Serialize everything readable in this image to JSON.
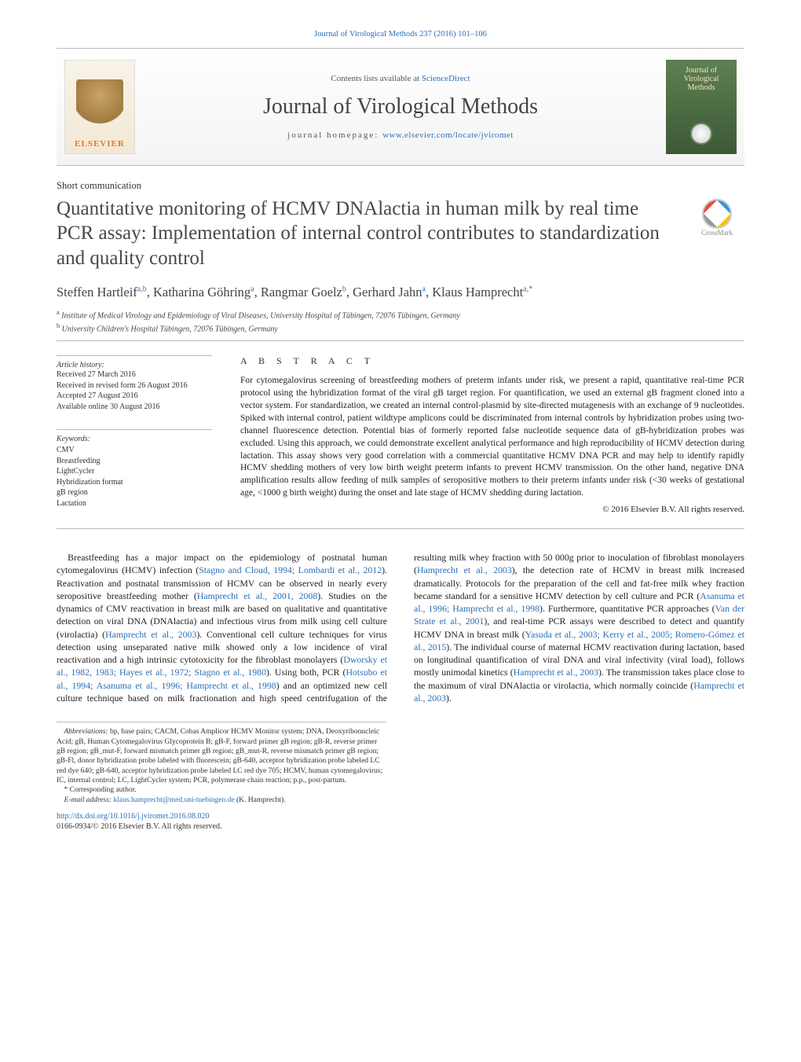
{
  "header": {
    "citation": "Journal of Virological Methods 237 (2016) 101–106",
    "contents_prefix": "Contents lists available at ",
    "contents_link": "ScienceDirect",
    "journal_name": "Journal of Virological Methods",
    "homepage_prefix": "journal homepage: ",
    "homepage_link": "www.elsevier.com/locate/jviromet",
    "elsevier_label": "ELSEVIER",
    "cover_title": "Journal of Virological Methods",
    "crossmark_label": "CrossMark"
  },
  "article": {
    "section_type": "Short communication",
    "title": "Quantitative monitoring of HCMV DNAlactia in human milk by real time PCR assay: Implementation of internal control contributes to standardization and quality control",
    "authors_html": "Steffen Hartleif<sup>a,b</sup>, Katharina Göhring<sup>a</sup>, Rangmar Goelz<sup>b</sup>, Gerhard Jahn<sup>a</sup>, Klaus Hamprecht<sup>a,*</sup>",
    "affiliations": [
      "a Institute of Medical Virology and Epidemiology of Viral Diseases, University Hospital of Tübingen, 72076 Tübingen, Germany",
      "b University Children's Hospital Tübingen, 72076 Tübingen, Germany"
    ]
  },
  "history": {
    "heading": "Article history:",
    "received": "Received 27 March 2016",
    "revised": "Received in revised form 26 August 2016",
    "accepted": "Accepted 27 August 2016",
    "online": "Available online 30 August 2016"
  },
  "keywords": {
    "heading": "Keywords:",
    "items": [
      "CMV",
      "Breastfeeding",
      "LightCycler",
      "Hybridization format",
      "gB region",
      "Lactation"
    ]
  },
  "abstract": {
    "heading": "A B S T R A C T",
    "text": "For cytomegalovirus screening of breastfeeding mothers of preterm infants under risk, we present a rapid, quantitative real-time PCR protocol using the hybridization format of the viral gB target region. For quantification, we used an external gB fragment cloned into a vector system. For standardization, we created an internal control-plasmid by site-directed mutagenesis with an exchange of 9 nucleotides. Spiked with internal control, patient wildtype amplicons could be discriminated from internal controls by hybridization probes using two-channel fluorescence detection. Potential bias of formerly reported false nucleotide sequence data of gB-hybridization probes was excluded. Using this approach, we could demonstrate excellent analytical performance and high reproducibility of HCMV detection during lactation. This assay shows very good correlation with a commercial quantitative HCMV DNA PCR and may help to identify rapidly HCMV shedding mothers of very low birth weight preterm infants to prevent HCMV transmission. On the other hand, negative DNA amplification results allow feeding of milk samples of seropositive mothers to their preterm infants under risk (<30 weeks of gestational age, <1000 g birth weight) during the onset and late stage of HCMV shedding during lactation.",
    "copyright": "© 2016 Elsevier B.V. All rights reserved."
  },
  "body": {
    "p1_pre": "Breastfeeding has a major impact on the epidemiology of postnatal human cytomegalovirus (HCMV) infection (",
    "p1_c1": "Stagno and Cloud, 1994; Lombardi et al., 2012",
    "p1_mid1": "). Reactivation and postnatal transmission of HCMV can be observed in nearly every seropositive breastfeeding mother (",
    "p1_c2": "Hamprecht et al., 2001, 2008",
    "p1_mid2": "). Studies on the dynamics of CMV reactivation in breast milk are based on qualitative and quantitative detection on viral DNA (DNAlactia) and infectious virus from milk using cell culture (virolactia) (",
    "p1_c3": "Hamprecht et al., 2003",
    "p1_mid3": "). Conventional cell culture techniques for virus detection using unseparated native milk showed only a low incidence ",
    "p2_pre": "of viral reactivation and a high intrinsic cytotoxicity for the fibroblast monolayers (",
    "p2_c1": "Dworsky et al., 1982, 1983; Hayes et al., 1972; Stagno et al., 1980",
    "p2_mid1": "). Using both, PCR (",
    "p2_c2": "Hotsubo et al., 1994; Asanuma et al., 1996; Hamprecht et al., 1998",
    "p2_mid2": ") and an optimized new cell culture technique based on milk fractionation and high speed centrifugation of the resulting milk whey fraction with 50 000g prior to inoculation of fibroblast monolayers (",
    "p2_c3": "Hamprecht et al., 2003",
    "p2_mid3": "), the detection rate of HCMV in breast milk increased dramatically. Protocols for the preparation of the cell and fat-free milk whey fraction became standard for a sensitive HCMV detection by cell culture and PCR (",
    "p2_c4": "Asanuma et al., 1996; Hamprecht et al., 1998",
    "p2_mid4": "). Furthermore, quantitative PCR approaches (",
    "p2_c5": "Van der Strate et al., 2001",
    "p2_mid5": "), and real-time PCR assays were described to detect and quantify HCMV DNA in breast milk (",
    "p2_c6": "Yasuda et al., 2003; Kerry et al., 2005; Romero-Gómez et al., 2015",
    "p2_mid6": "). The individual course of maternal HCMV reactivation during lactation, based on longitudinal quantification of viral DNA and viral infectivity (viral load), follows mostly unimodal kinetics (",
    "p2_c7": "Hamprecht et al., 2003",
    "p2_mid7": "). The transmission takes place close to the maximum of viral DNAlactia or virolactia, which normally coincide (",
    "p2_c8": "Hamprecht et al., 2003",
    "p2_post": ")."
  },
  "footnotes": {
    "abbrev_label": "Abbreviations:",
    "abbrev_text": " bp, base pairs; CACM, Cobas Amplicor HCMV Monitor system; DNA, Deoxyribonucleic Acid; gB, Human Cytomegalovirus Glycoprotein B; gB-F, forward primer gB region; gB-R, reverse primer gB region; gB_mut-F, forward mismatch primer gB region; gB_mut-R, reverse mismatch primer gB region; gB-Fl, donor hybridization probe labeled with fluorescein; gB-640, acceptor hybridization probe labeled LC red dye 640; gB-640, acceptor hybridization probe labeled LC red dye 705; HCMV, human cytomegalovirus; IC, internal control; LC, LightCycler system; PCR, polymerase chain reaction; p.p., post-partum.",
    "corr_label": "* Corresponding author.",
    "email_label": "E-mail address: ",
    "email": "klaus.hamprecht@med.uni-tuebingen.de",
    "email_suffix": " (K. Hamprecht).",
    "doi": "http://dx.doi.org/10.1016/j.jviromet.2016.08.020",
    "issn_line": "0166-0934/© 2016 Elsevier B.V. All rights reserved."
  },
  "colors": {
    "link": "#2b6fb6",
    "text": "#222222",
    "muted": "#555555",
    "rule": "#bbbbbb",
    "elsevier_orange": "#e8791e",
    "cover_green_top": "#5f7f55",
    "cover_green_bottom": "#3b5a34"
  }
}
